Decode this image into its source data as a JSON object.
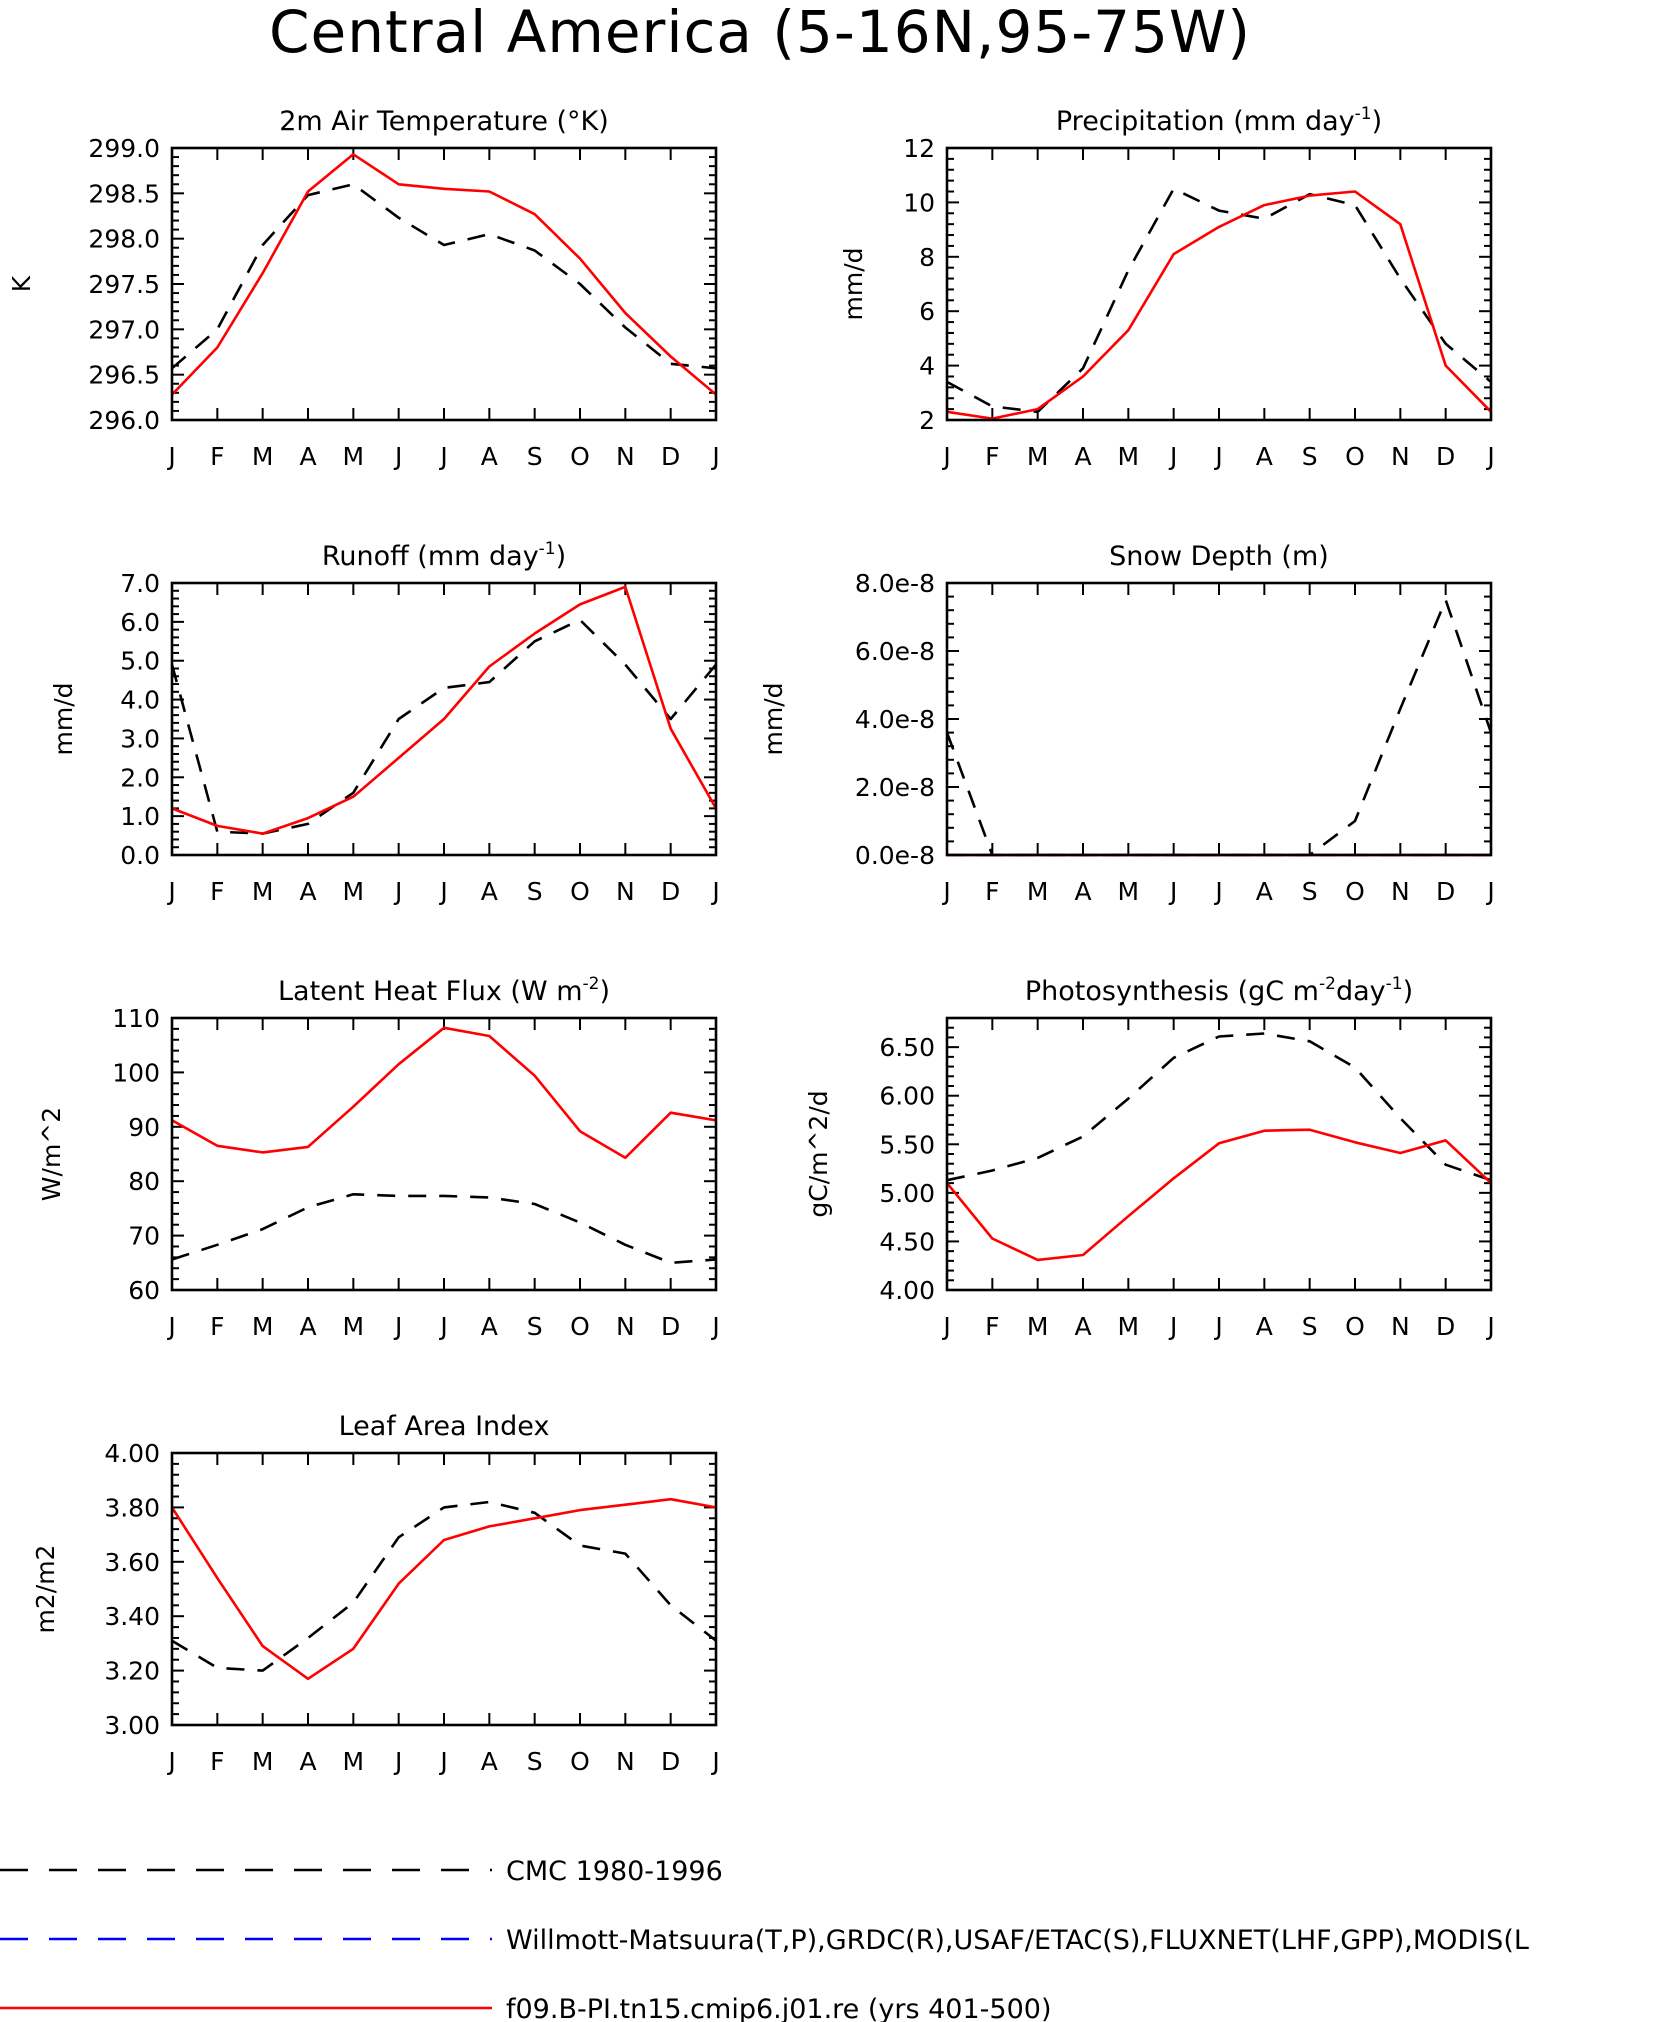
{
  "figure_title": "Central America (5-16N,95-75W)",
  "months": [
    "J",
    "F",
    "M",
    "A",
    "M",
    "J",
    "J",
    "A",
    "S",
    "O",
    "N",
    "D",
    "J"
  ],
  "legend": [
    {
      "label": "CMC 1980-1996",
      "color": "#000000",
      "dash": true
    },
    {
      "label": "Willmott-Matsuura(T,P),GRDC(R),USAF/ETAC(S),FLUXNET(LHF,GPP),MODIS(L",
      "color": "#0000ff",
      "dash": true
    },
    {
      "label": "f09.B-PI.tn15.cmip6.j01.re (yrs 401-500)",
      "color": "#ff0000",
      "dash": false
    }
  ],
  "chart_data": [
    {
      "type": "line",
      "title": "2m Air Temperature (°K)",
      "ylabel": "K",
      "ylim": [
        296.0,
        299.0
      ],
      "yticks": [
        296.0,
        296.5,
        297.0,
        297.5,
        298.0,
        298.5,
        299.0
      ],
      "ytick_labels": [
        "296.0",
        "296.5",
        "297.0",
        "297.5",
        "298.0",
        "298.5",
        "299.0"
      ],
      "series": [
        {
          "name": "CMC 1980-1996",
          "color": "#000000",
          "dash": true,
          "values": [
            296.57,
            297.0,
            297.93,
            298.48,
            298.6,
            298.23,
            297.93,
            298.05,
            297.87,
            297.5,
            297.02,
            296.62,
            296.57
          ]
        },
        {
          "name": "f09.B-PI.tn15.cmip6.j01.re (yrs 401-500)",
          "color": "#ff0000",
          "dash": false,
          "values": [
            296.28,
            296.8,
            297.62,
            298.52,
            298.93,
            298.6,
            298.55,
            298.52,
            298.27,
            297.78,
            297.18,
            296.7,
            296.28
          ]
        }
      ]
    },
    {
      "type": "line",
      "title": "Precipitation (mm day-1)",
      "title_main": "Precipitation (mm day",
      "title_sup": "-1",
      "title_end": ")",
      "ylabel": "mm/d",
      "ylim": [
        2,
        12
      ],
      "yticks": [
        2,
        4,
        6,
        8,
        10,
        12
      ],
      "ytick_labels": [
        "2",
        "4",
        "6",
        "8",
        "10",
        "12"
      ],
      "series": [
        {
          "name": "CMC 1980-1996",
          "color": "#000000",
          "dash": true,
          "values": [
            3.4,
            2.5,
            2.3,
            3.9,
            7.5,
            10.5,
            9.7,
            9.4,
            10.3,
            9.9,
            7.2,
            4.8,
            3.4
          ]
        },
        {
          "name": "f09.B-PI.tn15.cmip6.j01.re (yrs 401-500)",
          "color": "#ff0000",
          "dash": false,
          "values": [
            2.3,
            2.05,
            2.4,
            3.6,
            5.3,
            8.1,
            9.1,
            9.9,
            10.25,
            10.4,
            9.2,
            4.0,
            2.3
          ]
        }
      ]
    },
    {
      "type": "line",
      "title": "Runoff (mm day-1)",
      "title_main": "Runoff (mm day",
      "title_sup": "-1",
      "title_end": ")",
      "ylabel": "mm/d",
      "ylim": [
        0,
        7
      ],
      "yticks": [
        0,
        1,
        2,
        3,
        4,
        5,
        6,
        7
      ],
      "ytick_labels": [
        "0.0",
        "1.0",
        "2.0",
        "3.0",
        "4.0",
        "5.0",
        "6.0",
        "7.0"
      ],
      "series": [
        {
          "name": "CMC 1980-1996",
          "color": "#000000",
          "dash": true,
          "values": [
            4.9,
            0.6,
            0.55,
            0.8,
            1.6,
            3.5,
            4.3,
            4.45,
            5.5,
            6.05,
            4.9,
            3.5,
            4.9
          ]
        },
        {
          "name": "f09.B-PI.tn15.cmip6.j01.re (yrs 401-500)",
          "color": "#ff0000",
          "dash": false,
          "values": [
            1.2,
            0.75,
            0.55,
            0.95,
            1.5,
            2.5,
            3.5,
            4.85,
            5.7,
            6.45,
            6.9,
            3.25,
            1.2
          ]
        }
      ]
    },
    {
      "type": "line",
      "title": "Snow Depth (m)",
      "ylabel": "mm/d",
      "ylim": [
        0,
        8
      ],
      "yticks": [
        0,
        2,
        4,
        6,
        8
      ],
      "ytick_labels": [
        "0.0e-8",
        "2.0e-8",
        "4.0e-8",
        "6.0e-8",
        "8.0e-8"
      ],
      "series": [
        {
          "name": "CMC 1980-1996",
          "color": "#000000",
          "dash": true,
          "values": [
            3.6,
            0,
            0,
            0,
            0,
            0,
            0,
            0,
            0,
            1.0,
            4.3,
            7.5,
            3.6
          ]
        },
        {
          "name": "Willmott-Matsuura(T,P),GRDC(R),USAF/ETAC(S),FLUXNET(LHF,GPP),MODIS(L",
          "color": "#0000ff",
          "dash": true,
          "values": [
            0,
            0,
            0,
            0,
            0,
            0,
            0,
            0,
            0,
            0,
            0,
            0,
            0
          ]
        },
        {
          "name": "f09.B-PI.tn15.cmip6.j01.re (yrs 401-500)",
          "color": "#ff0000",
          "dash": false,
          "values": [
            0,
            0,
            0,
            0,
            0,
            0,
            0,
            0,
            0,
            0,
            0,
            0,
            0
          ]
        }
      ]
    },
    {
      "type": "line",
      "title": "Latent Heat Flux (W m-2)",
      "title_main": "Latent Heat Flux (W m",
      "title_sup": "-2",
      "title_end": ")",
      "ylabel": "W/m^2",
      "ylim": [
        60,
        110
      ],
      "yticks": [
        60,
        70,
        80,
        90,
        100,
        110
      ],
      "ytick_labels": [
        "60",
        "70",
        "80",
        "90",
        "100",
        "110"
      ],
      "series": [
        {
          "name": "CMC 1980-1996",
          "color": "#000000",
          "dash": true,
          "values": [
            65.6,
            68.3,
            71.2,
            75.2,
            77.6,
            77.3,
            77.3,
            77.0,
            75.8,
            72.4,
            68.3,
            65.0,
            65.6
          ]
        },
        {
          "name": "f09.B-PI.tn15.cmip6.j01.re (yrs 401-500)",
          "color": "#ff0000",
          "dash": false,
          "values": [
            91.2,
            86.5,
            85.3,
            86.3,
            93.7,
            101.5,
            108.2,
            106.7,
            99.4,
            89.2,
            84.3,
            92.6,
            91.2
          ]
        }
      ]
    },
    {
      "type": "line",
      "title": "Photosynthesis (gC m-2day-1)",
      "title_main": "Photosynthesis (gC m",
      "title_sup": "-2",
      "title_mid": "day",
      "title_sup2": "-1",
      "title_end": ")",
      "ylabel": "gC/m^2/d",
      "ylim": [
        4.0,
        6.8
      ],
      "yticks": [
        4.0,
        4.5,
        5.0,
        5.5,
        6.0,
        6.5
      ],
      "ytick_labels": [
        "4.00",
        "4.50",
        "5.00",
        "5.50",
        "6.00",
        "6.50"
      ],
      "series": [
        {
          "name": "CMC 1980-1996",
          "color": "#000000",
          "dash": true,
          "values": [
            5.13,
            5.23,
            5.36,
            5.58,
            5.97,
            6.39,
            6.61,
            6.64,
            6.56,
            6.29,
            5.77,
            5.29,
            5.13
          ]
        },
        {
          "name": "f09.B-PI.tn15.cmip6.j01.re (yrs 401-500)",
          "color": "#ff0000",
          "dash": false,
          "values": [
            5.1,
            4.53,
            4.31,
            4.36,
            4.76,
            5.15,
            5.51,
            5.64,
            5.65,
            5.52,
            5.41,
            5.54,
            5.1
          ]
        }
      ]
    },
    {
      "type": "line",
      "title": "Leaf Area Index",
      "ylabel": "m2/m2",
      "ylim": [
        3.0,
        4.0
      ],
      "yticks": [
        3.0,
        3.2,
        3.4,
        3.6,
        3.8,
        4.0
      ],
      "ytick_labels": [
        "3.00",
        "3.20",
        "3.40",
        "3.60",
        "3.80",
        "4.00"
      ],
      "series": [
        {
          "name": "CMC 1980-1996",
          "color": "#000000",
          "dash": true,
          "values": [
            3.31,
            3.21,
            3.2,
            3.32,
            3.45,
            3.69,
            3.8,
            3.82,
            3.78,
            3.66,
            3.63,
            3.44,
            3.31
          ]
        },
        {
          "name": "f09.B-PI.tn15.cmip6.j01.re (yrs 401-500)",
          "color": "#ff0000",
          "dash": false,
          "values": [
            3.8,
            3.54,
            3.29,
            3.17,
            3.28,
            3.52,
            3.68,
            3.73,
            3.76,
            3.79,
            3.81,
            3.83,
            3.8
          ]
        }
      ]
    }
  ]
}
